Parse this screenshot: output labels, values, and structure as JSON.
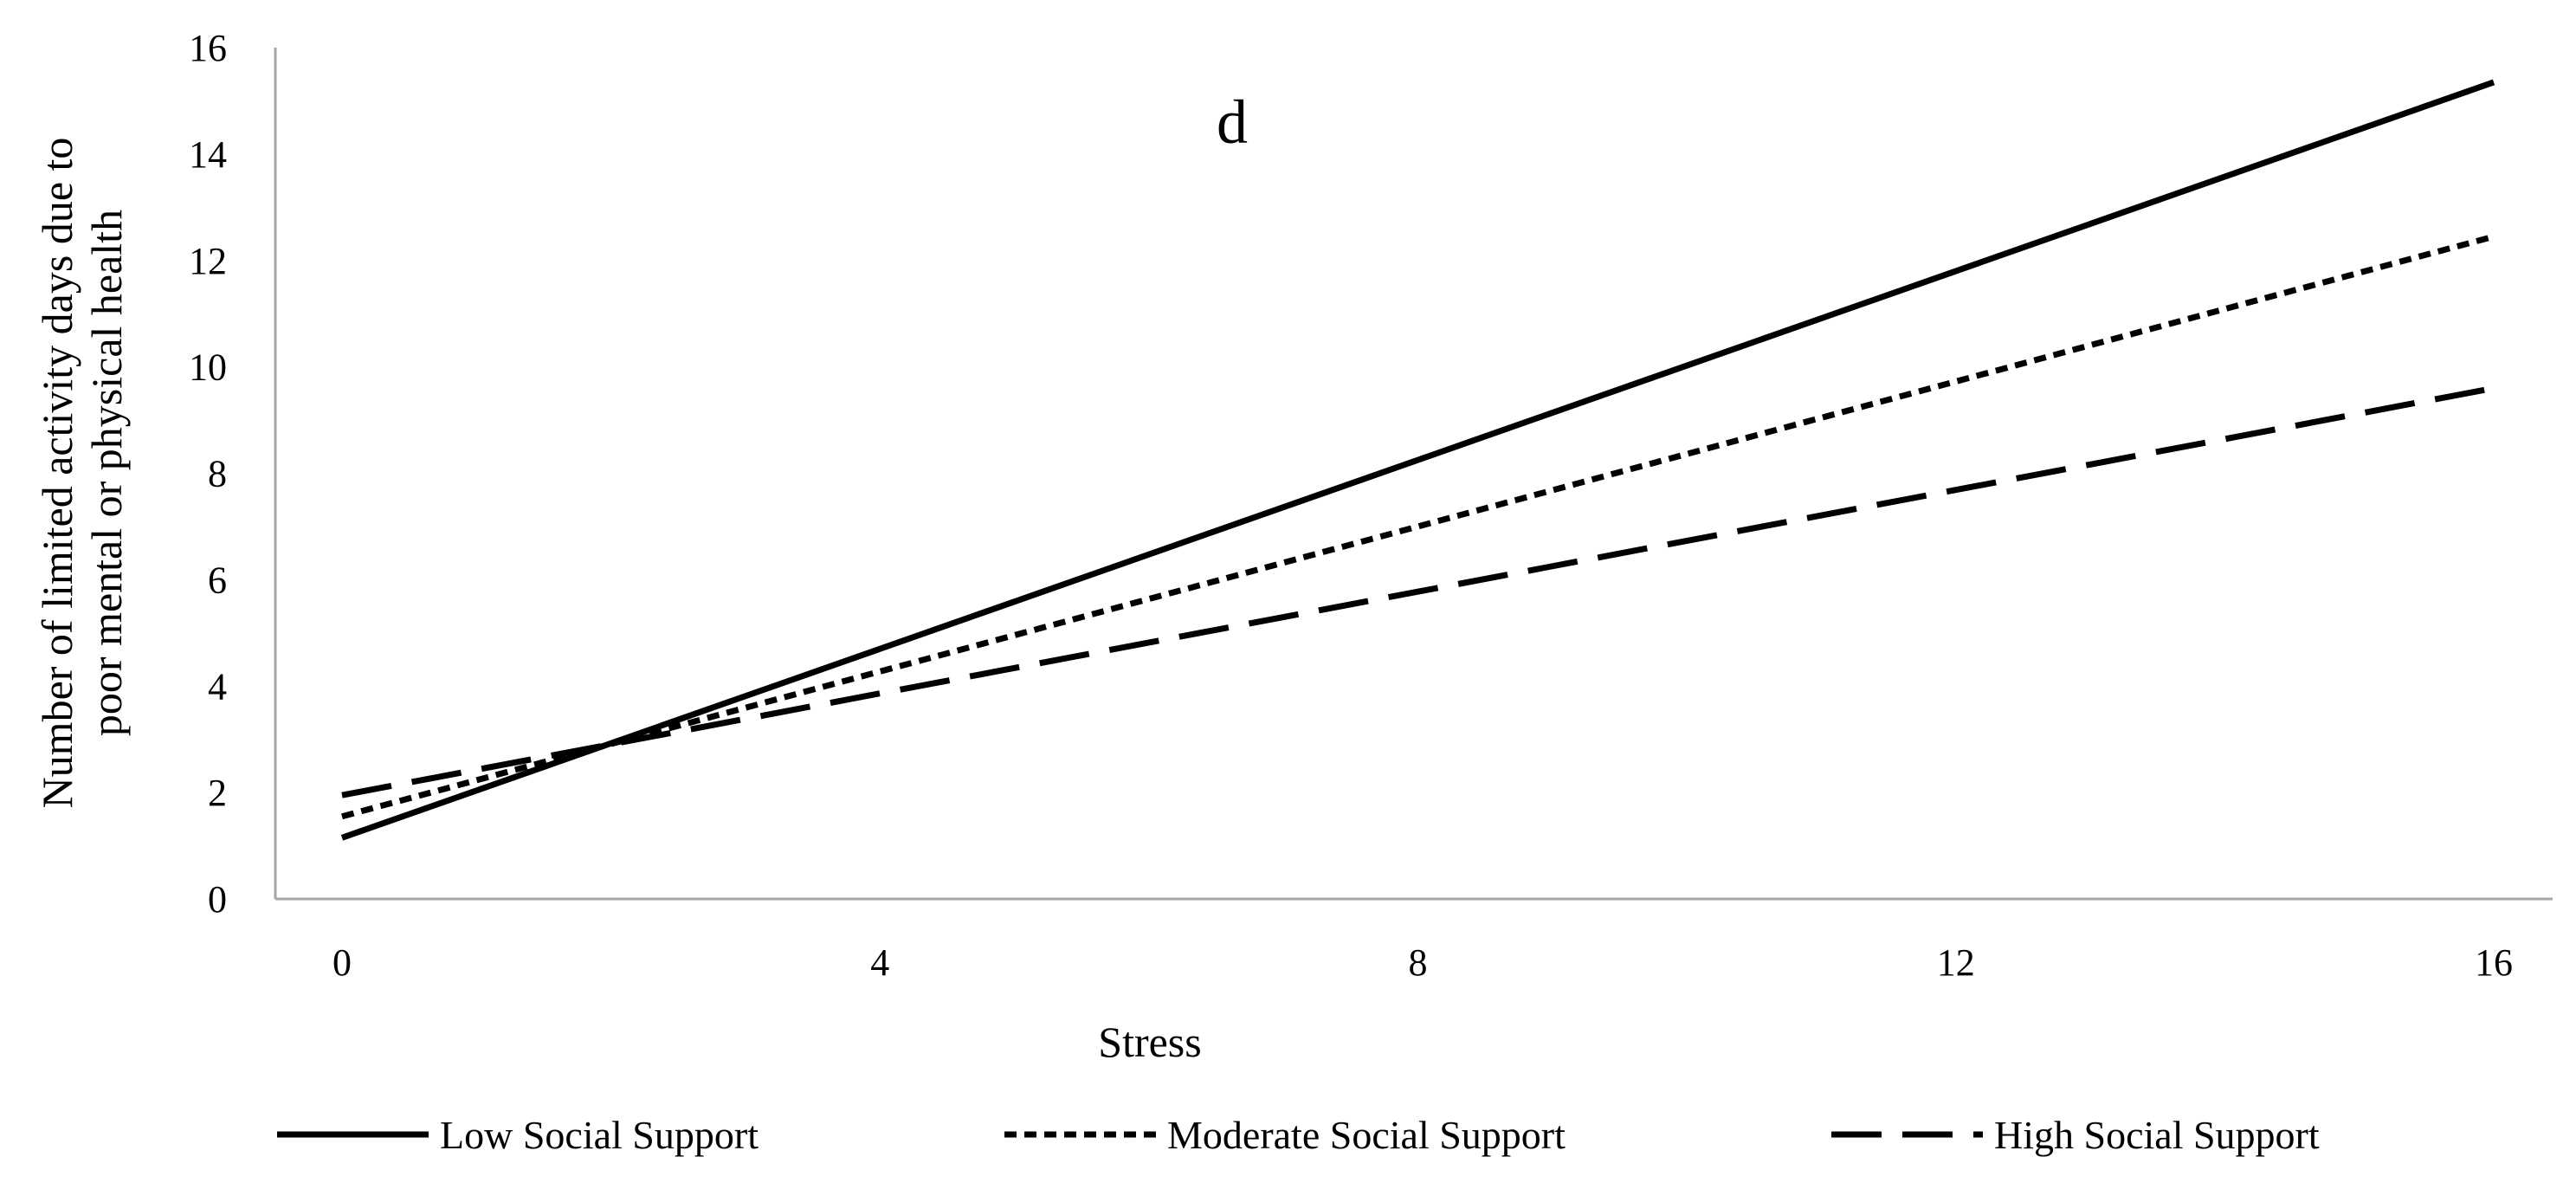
{
  "chart_data": {
    "type": "line",
    "annotation": "d",
    "xlabel": "Stress",
    "ylabel_lines": [
      "Number of limited activity days due to",
      "poor mental or physical health"
    ],
    "xlim": [
      0,
      16
    ],
    "ylim": [
      0,
      16
    ],
    "xticks": [
      0,
      4,
      8,
      12,
      16
    ],
    "yticks": [
      0,
      2,
      4,
      6,
      8,
      10,
      12,
      14,
      16
    ],
    "grid": false,
    "legend_position": "bottom",
    "series": [
      {
        "name": "Low Social Support",
        "style": "solid",
        "x": [
          0,
          16
        ],
        "y": [
          1.15,
          15.35
        ]
      },
      {
        "name": "Moderate Social Support",
        "style": "dotted",
        "x": [
          0,
          16
        ],
        "y": [
          1.55,
          12.45
        ]
      },
      {
        "name": "High Social Support",
        "style": "dashed",
        "x": [
          0,
          16
        ],
        "y": [
          1.95,
          9.6
        ]
      }
    ]
  }
}
